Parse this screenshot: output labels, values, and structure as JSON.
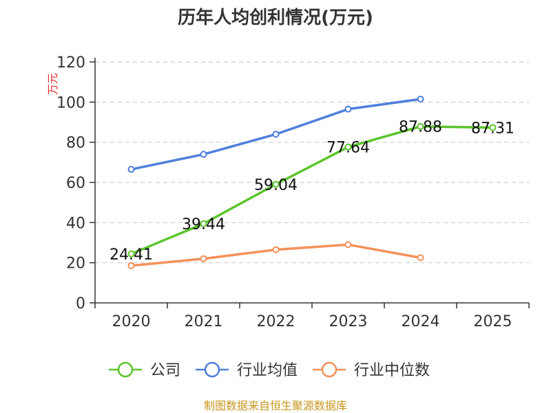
{
  "chart_data": {
    "type": "line",
    "title": "历年人均创利情况(万元)",
    "ylabel": "万元",
    "xlabel": "",
    "ylim": [
      0,
      120
    ],
    "yticks": [
      0,
      20,
      40,
      60,
      80,
      100,
      120
    ],
    "categories": [
      "2020",
      "2021",
      "2022",
      "2023",
      "2024",
      "2025"
    ],
    "grid": true,
    "legend_position": "bottom",
    "series": [
      {
        "name": "公司",
        "color": "#5cc42c",
        "values": [
          24.41,
          39.44,
          59.04,
          77.64,
          87.88,
          87.31
        ],
        "labels": [
          "24.41",
          "39.44",
          "59.04",
          "77.64",
          "87.88",
          "87.31"
        ]
      },
      {
        "name": "行业均值",
        "color": "#4f7fdc",
        "values": [
          66.5,
          74,
          84,
          96.5,
          101.5,
          null
        ],
        "labels": []
      },
      {
        "name": "行业中位数",
        "color": "#f5905a",
        "values": [
          18.5,
          22,
          26.5,
          29,
          22.5,
          null
        ],
        "labels": []
      }
    ]
  },
  "footer": {
    "source": "制图数据来自恒生聚源数据库",
    "source_color": "#c8961e"
  },
  "colors": {
    "unit_label": "#e03030",
    "axis": "#333333",
    "grid": "#cccccc"
  }
}
